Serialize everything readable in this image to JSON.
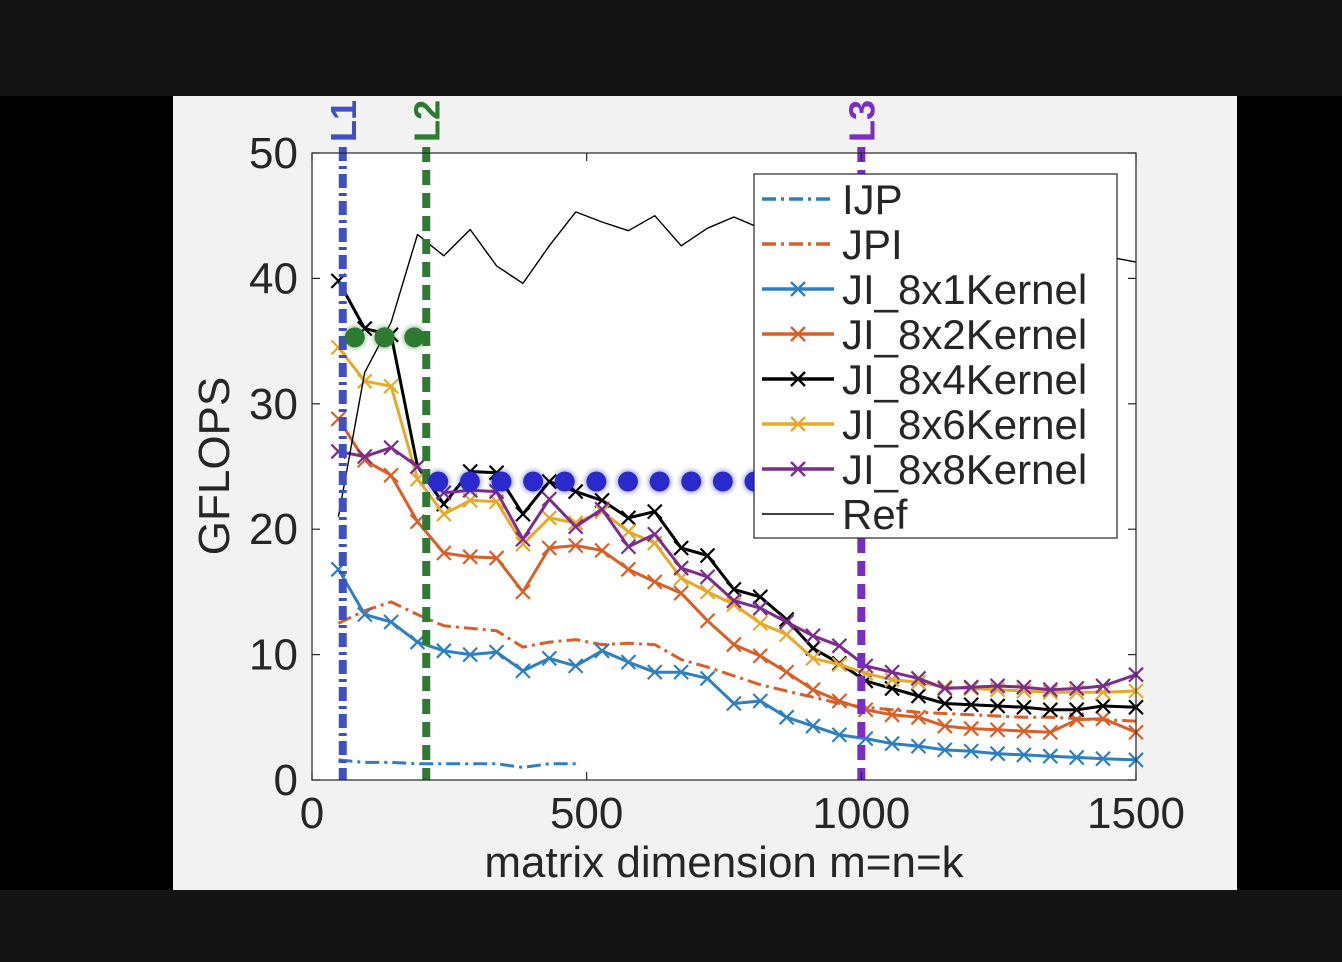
{
  "chart_data": {
    "type": "line",
    "xlabel": "matrix dimension m=n=k",
    "ylabel": "GFLOPS",
    "xlim": [
      0,
      1500
    ],
    "ylim": [
      0,
      50
    ],
    "xticks": [
      0,
      500,
      1000,
      1500
    ],
    "yticks": [
      0,
      10,
      20,
      30,
      40,
      50
    ],
    "grid": false,
    "legend_position": "top-right",
    "series": [
      {
        "name": "IJP",
        "color": "#2e7fbf",
        "style": "dashdot",
        "marker": "none",
        "x": [
          48,
          96,
          144,
          192,
          240,
          288,
          336,
          384,
          432,
          480
        ],
        "y": [
          1.6,
          1.4,
          1.4,
          1.3,
          1.3,
          1.3,
          1.3,
          1.0,
          1.3,
          1.3
        ]
      },
      {
        "name": "JPI",
        "color": "#d95f28",
        "style": "dashdot",
        "marker": "none",
        "x": [
          48,
          96,
          144,
          192,
          240,
          288,
          336,
          384,
          432,
          480,
          528,
          576,
          624,
          672,
          720,
          768,
          816,
          864,
          912,
          960,
          1008,
          1056,
          1104,
          1152,
          1200,
          1248,
          1296,
          1344,
          1392,
          1440,
          1500
        ],
        "y": [
          12.5,
          13.5,
          14.2,
          13.2,
          12.3,
          12.1,
          11.9,
          10.6,
          11.0,
          11.2,
          10.8,
          10.9,
          10.8,
          9.6,
          9.0,
          8.3,
          7.6,
          7.1,
          6.6,
          6.1,
          5.8,
          5.6,
          5.4,
          5.3,
          5.2,
          5.1,
          5.0,
          5.0,
          4.9,
          4.8,
          4.7
        ]
      },
      {
        "name": "JI_8x1Kernel",
        "color": "#2e7fbf",
        "style": "solid",
        "marker": "x",
        "x": [
          48,
          96,
          144,
          192,
          240,
          288,
          336,
          384,
          432,
          480,
          528,
          576,
          624,
          672,
          720,
          768,
          816,
          864,
          912,
          960,
          1008,
          1056,
          1104,
          1152,
          1200,
          1248,
          1296,
          1344,
          1392,
          1440,
          1500
        ],
        "y": [
          16.8,
          13.2,
          12.6,
          11.0,
          10.3,
          10.0,
          10.2,
          8.7,
          9.7,
          9.1,
          10.3,
          9.4,
          8.6,
          8.6,
          8.1,
          6.1,
          6.3,
          5.0,
          4.3,
          3.6,
          3.3,
          2.9,
          2.7,
          2.4,
          2.3,
          2.1,
          2.0,
          1.9,
          1.8,
          1.7,
          1.6
        ]
      },
      {
        "name": "JI_8x2Kernel",
        "color": "#d95f28",
        "style": "solid",
        "marker": "x",
        "x": [
          48,
          96,
          144,
          192,
          240,
          288,
          336,
          384,
          432,
          480,
          528,
          576,
          624,
          672,
          720,
          768,
          816,
          864,
          912,
          960,
          1008,
          1056,
          1104,
          1152,
          1200,
          1248,
          1296,
          1344,
          1392,
          1440,
          1500
        ],
        "y": [
          28.8,
          25.5,
          24.3,
          20.6,
          18.1,
          17.8,
          17.7,
          15.0,
          18.5,
          18.7,
          18.3,
          16.8,
          15.8,
          14.9,
          12.7,
          10.8,
          9.9,
          8.6,
          7.2,
          6.3,
          5.6,
          5.2,
          5.0,
          4.3,
          4.1,
          4.0,
          3.9,
          3.8,
          4.8,
          4.9,
          3.8
        ]
      },
      {
        "name": "JI_8x4Kernel",
        "color": "#000000",
        "style": "solid",
        "marker": "x",
        "x": [
          48,
          96,
          144,
          192,
          240,
          288,
          336,
          384,
          432,
          480,
          528,
          576,
          624,
          672,
          720,
          768,
          816,
          864,
          912,
          960,
          1008,
          1056,
          1104,
          1152,
          1200,
          1248,
          1296,
          1344,
          1392,
          1440,
          1500
        ],
        "y": [
          39.8,
          36.0,
          35.5,
          25.0,
          22.0,
          24.6,
          24.5,
          21.2,
          23.8,
          23.0,
          22.3,
          20.9,
          21.4,
          18.5,
          17.9,
          15.2,
          14.6,
          12.8,
          10.5,
          9.3,
          7.9,
          7.3,
          6.7,
          6.1,
          6.0,
          5.9,
          5.8,
          5.6,
          5.6,
          5.9,
          5.8
        ]
      },
      {
        "name": "JI_8x6Kernel",
        "color": "#e6a92a",
        "style": "solid",
        "marker": "x",
        "x": [
          48,
          96,
          144,
          192,
          240,
          288,
          336,
          384,
          432,
          480,
          528,
          576,
          624,
          672,
          720,
          768,
          816,
          864,
          912,
          960,
          1008,
          1056,
          1104,
          1152,
          1200,
          1248,
          1296,
          1344,
          1392,
          1440,
          1500
        ],
        "y": [
          34.5,
          31.8,
          31.4,
          24.0,
          21.2,
          22.3,
          22.2,
          18.8,
          20.9,
          20.5,
          21.4,
          19.8,
          18.9,
          16.1,
          15.0,
          14.0,
          12.5,
          11.6,
          9.7,
          9.2,
          8.5,
          8.0,
          7.8,
          7.4,
          7.3,
          7.2,
          7.1,
          7.0,
          7.0,
          7.0,
          7.1
        ]
      },
      {
        "name": "JI_8x8Kernel",
        "color": "#7b2d8e",
        "style": "solid",
        "marker": "x",
        "x": [
          48,
          96,
          144,
          192,
          240,
          288,
          336,
          384,
          432,
          480,
          528,
          576,
          624,
          672,
          720,
          768,
          816,
          864,
          912,
          960,
          1008,
          1056,
          1104,
          1152,
          1200,
          1248,
          1296,
          1344,
          1392,
          1440,
          1500
        ],
        "y": [
          26.2,
          25.8,
          26.5,
          25.0,
          22.9,
          23.1,
          23.0,
          19.2,
          22.4,
          20.2,
          21.6,
          18.6,
          19.6,
          16.9,
          16.2,
          14.3,
          13.7,
          12.6,
          11.5,
          10.7,
          9.1,
          8.6,
          8.1,
          7.3,
          7.4,
          7.5,
          7.4,
          7.2,
          7.3,
          7.5,
          8.4
        ]
      },
      {
        "name": "Ref",
        "color": "#000000",
        "style": "solid",
        "marker": "none",
        "x": [
          48,
          96,
          144,
          192,
          240,
          288,
          336,
          384,
          432,
          480,
          528,
          576,
          624,
          672,
          720,
          768,
          816,
          864,
          912,
          960,
          1008,
          1056,
          1104,
          1152,
          1200,
          1248,
          1296,
          1344,
          1392,
          1440,
          1500
        ],
        "y": [
          21.0,
          32.5,
          36.5,
          43.5,
          41.8,
          43.9,
          41.0,
          39.6,
          42.6,
          45.3,
          44.5,
          43.8,
          45.0,
          42.6,
          44.0,
          44.9,
          44.0,
          43.0,
          43.5,
          43.8,
          44.0,
          43.3,
          43.5,
          43.2,
          43.0,
          42.8,
          42.5,
          42.3,
          42.0,
          41.8,
          41.3
        ]
      }
    ],
    "annotations": {
      "cache_lines": [
        {
          "label": "L1",
          "x": 56,
          "color": "#3f4fc4",
          "style": "dashdot"
        },
        {
          "label": "L2",
          "x": 208,
          "color": "#2f7a32",
          "style": "dashed"
        },
        {
          "label": "L3",
          "x": 1000,
          "color": "#7b2cc4",
          "style": "dashed"
        }
      ],
      "dotted_levels": [
        {
          "color": "#2f7a32",
          "x_start": 56,
          "x_end": 208,
          "y": 35.3,
          "dots": 3
        },
        {
          "color": "#2a2acc",
          "x_start": 208,
          "x_end": 1000,
          "y": 23.8,
          "dots": 14
        }
      ]
    }
  }
}
